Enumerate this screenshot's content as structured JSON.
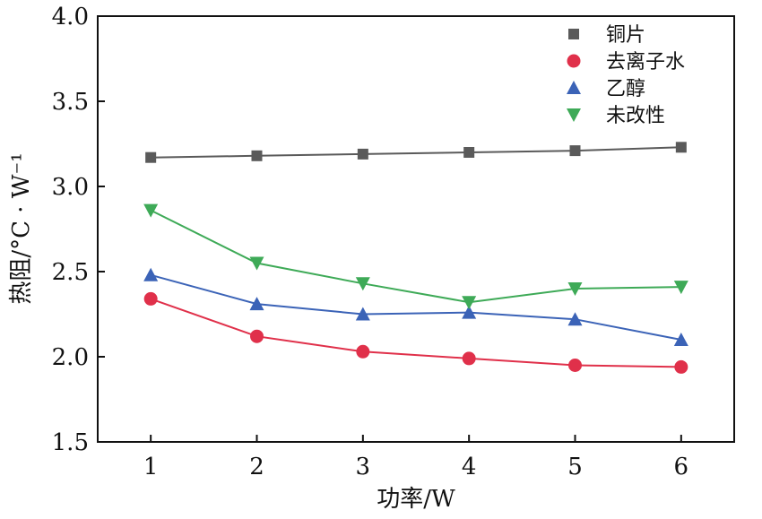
{
  "chart_data": {
    "type": "line",
    "xlabel": "功率/W",
    "ylabel": "热阻/°C · W⁻¹",
    "x": [
      1,
      2,
      3,
      4,
      5,
      6
    ],
    "x_ticks": [
      "1",
      "2",
      "3",
      "4",
      "5",
      "6"
    ],
    "y_ticks": [
      "1.5",
      "2.0",
      "2.5",
      "3.0",
      "3.5",
      "4.0"
    ],
    "xlim": [
      0.5,
      6.5
    ],
    "ylim": [
      1.5,
      4.0
    ],
    "grid": false,
    "legend_position": "top-right",
    "series": [
      {
        "name": "铜片",
        "marker": "square",
        "color": "#5a5a5a",
        "values": [
          3.17,
          3.18,
          3.19,
          3.2,
          3.21,
          3.23
        ]
      },
      {
        "name": "去离子水",
        "marker": "circle",
        "color": "#e0304a",
        "values": [
          2.34,
          2.12,
          2.03,
          1.99,
          1.95,
          1.94
        ]
      },
      {
        "name": "乙醇",
        "marker": "triangle-up",
        "color": "#3b63b7",
        "values": [
          2.48,
          2.31,
          2.25,
          2.26,
          2.22,
          2.1
        ]
      },
      {
        "name": "未改性",
        "marker": "triangle-down",
        "color": "#3eaa57",
        "values": [
          2.86,
          2.55,
          2.43,
          2.32,
          2.4,
          2.41
        ]
      }
    ]
  }
}
